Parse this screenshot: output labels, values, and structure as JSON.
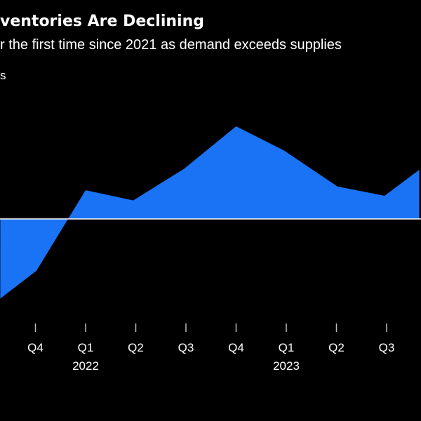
{
  "header": {
    "title": "ventories Are Declining",
    "subtitle": "r the first time since 2021 as demand exceeds supplies",
    "unit_label": "s"
  },
  "colors": {
    "background": "#000000",
    "area_fill": "#1a73f5",
    "zero_line": "#ffffff",
    "text": "#ffffff"
  },
  "chart_data": {
    "type": "area",
    "title": "ventories Are Declining",
    "subtitle": "r the first time since 2021 as demand exceeds supplies",
    "xlabel": "",
    "ylabel": "s",
    "grid": false,
    "legend": "none",
    "ylim": [
      -1.0,
      1.0
    ],
    "quarter_ticks": [
      {
        "t": 1,
        "label": "Q4",
        "year": ""
      },
      {
        "t": 2,
        "label": "Q1",
        "year": "2022"
      },
      {
        "t": 3,
        "label": "Q2",
        "year": ""
      },
      {
        "t": 4,
        "label": "Q3",
        "year": ""
      },
      {
        "t": 5,
        "label": "Q4",
        "year": ""
      },
      {
        "t": 6,
        "label": "Q1",
        "year": "2023"
      },
      {
        "t": 7,
        "label": "Q2",
        "year": ""
      },
      {
        "t": 8,
        "label": "Q3",
        "year": ""
      }
    ],
    "series": [
      {
        "x": [
          0.3,
          1.02,
          2.0,
          2.95,
          3.96,
          5.0,
          5.95,
          7.02,
          7.96,
          8.65
        ],
        "values": [
          -0.86,
          -0.56,
          0.31,
          0.2,
          0.54,
          1.0,
          0.74,
          0.35,
          0.25,
          0.53
        ]
      }
    ]
  }
}
